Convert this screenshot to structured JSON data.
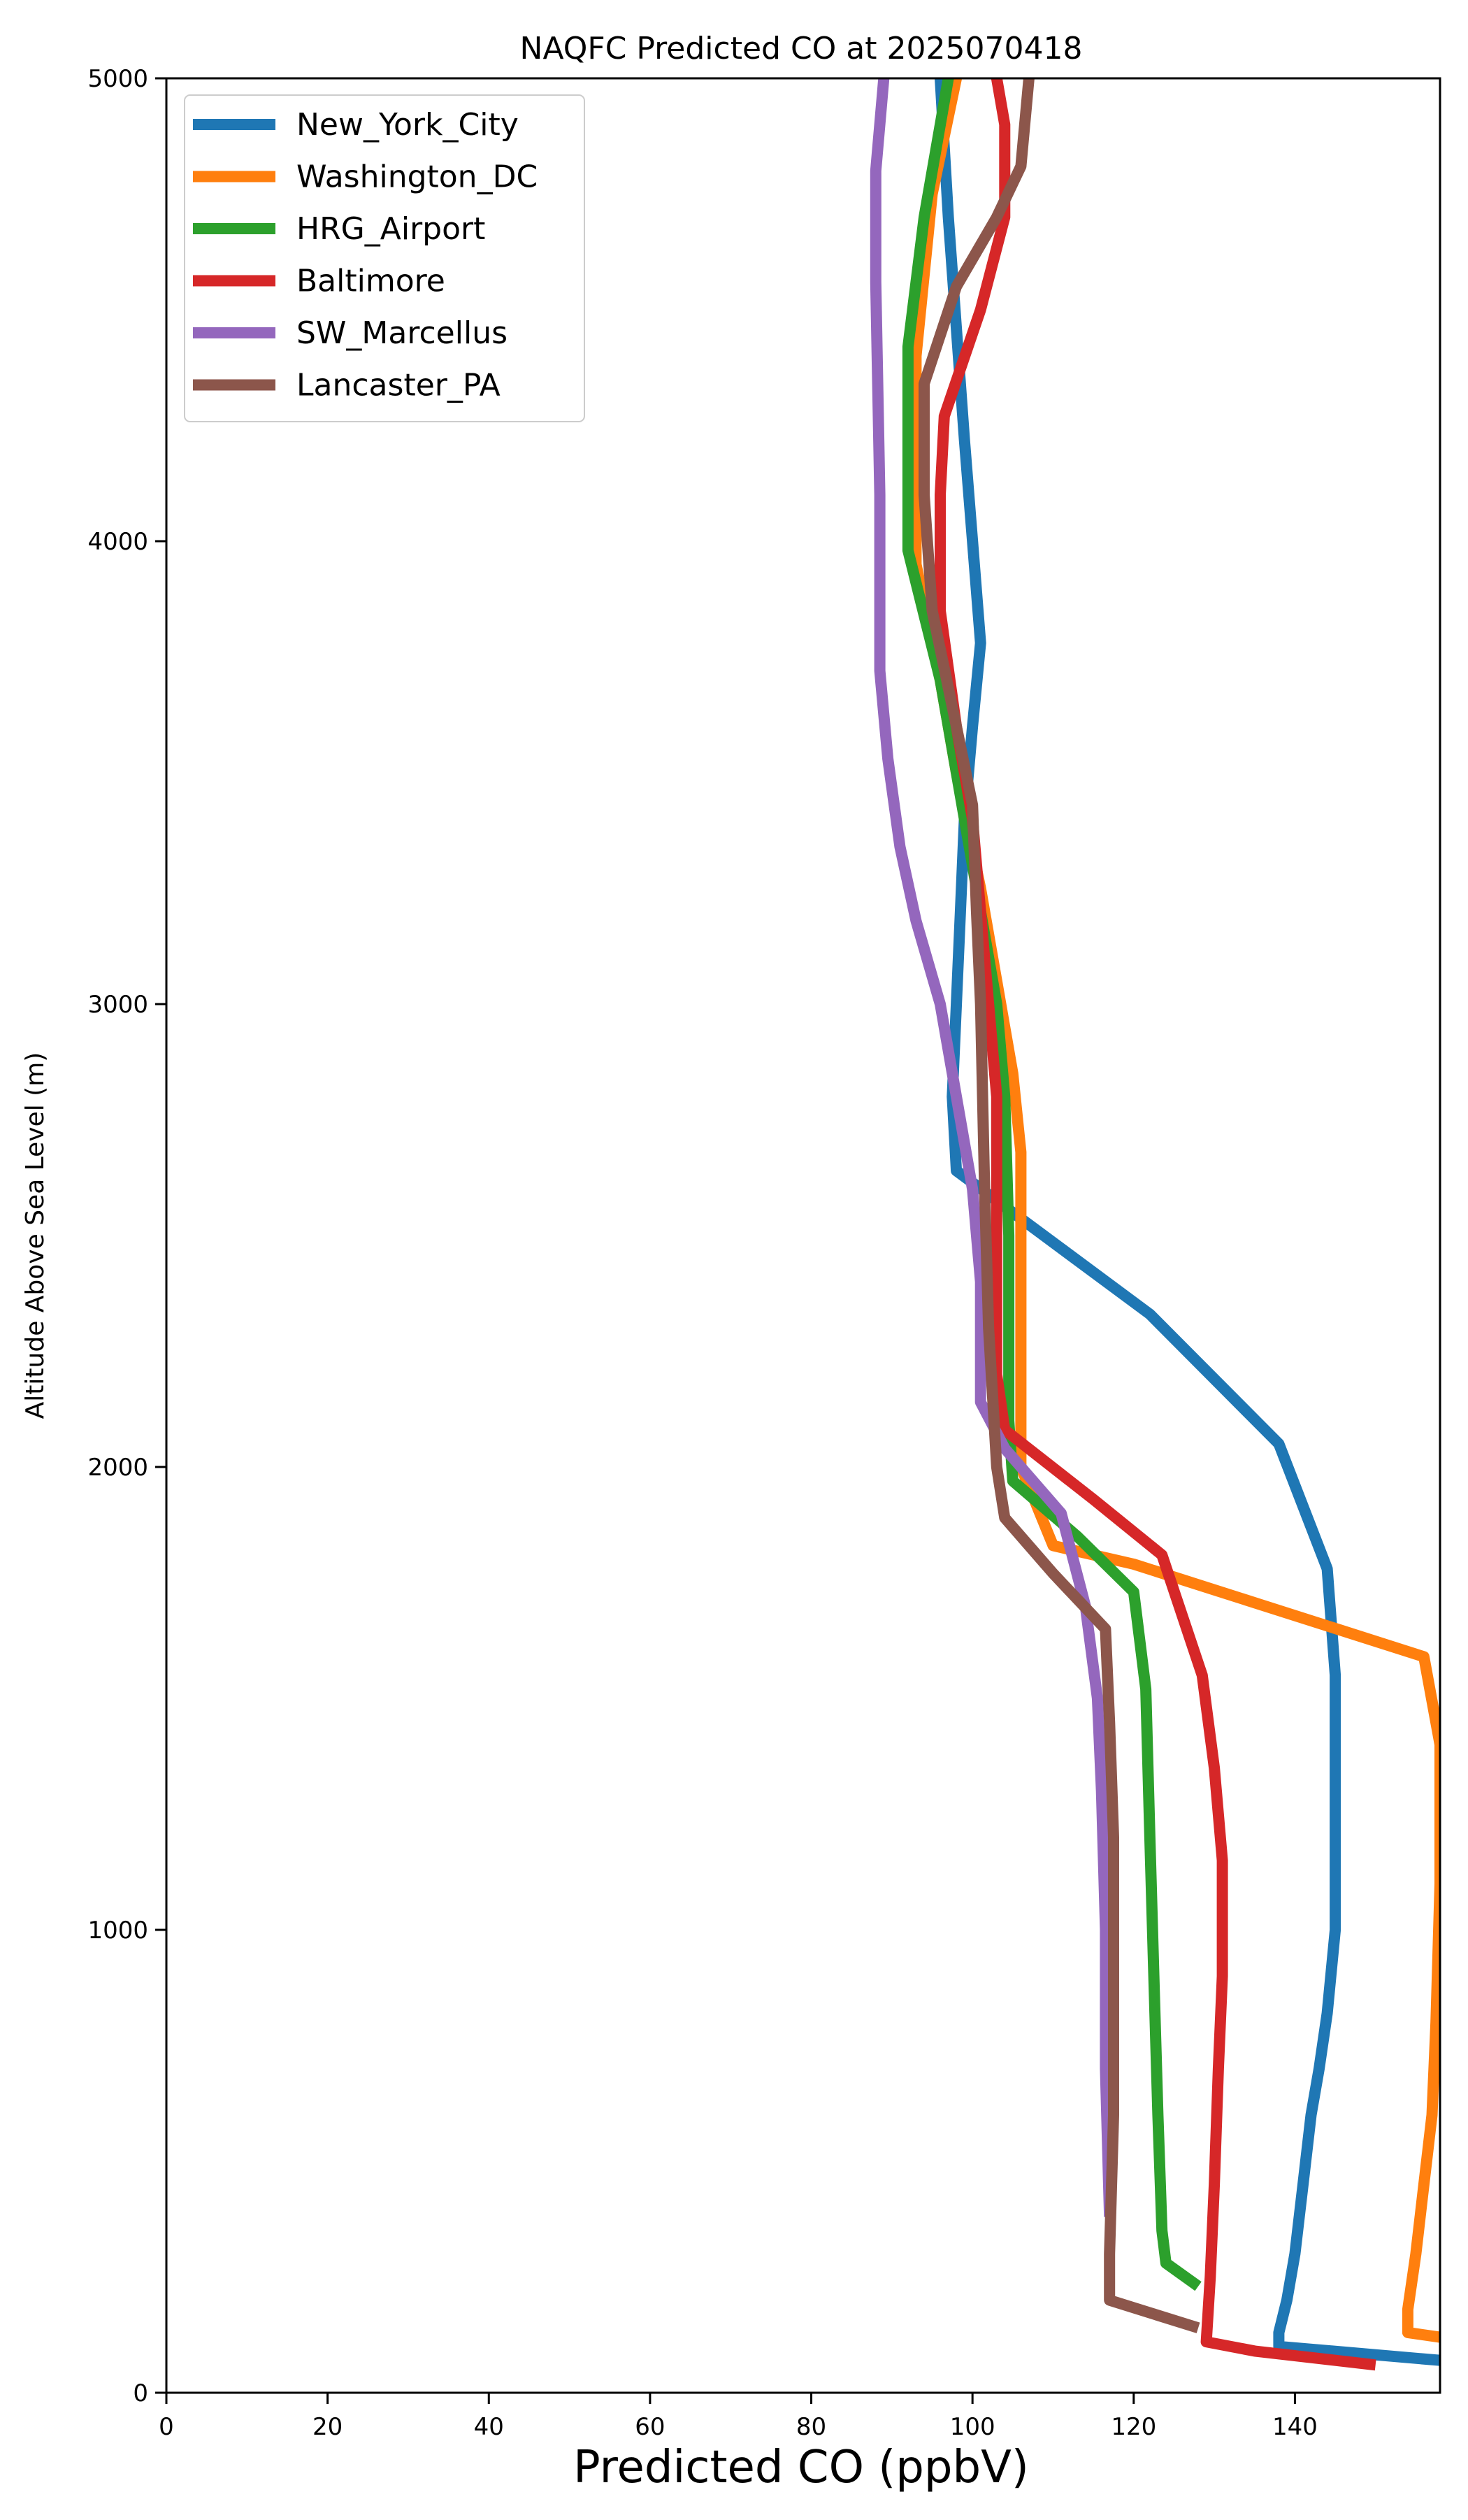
{
  "chart_data": {
    "type": "line",
    "title": "NAQFC Predicted CO at 2025070418",
    "xlabel": "Predicted CO (ppbV)",
    "ylabel": "Altitude Above Sea Level (m)",
    "xlim": [
      0,
      158
    ],
    "ylim": [
      0,
      5000
    ],
    "xticks": [
      0,
      20,
      40,
      60,
      80,
      100,
      120,
      140
    ],
    "yticks": [
      0,
      1000,
      2000,
      3000,
      4000,
      5000
    ],
    "grid": false,
    "legend_position": "top-left",
    "series": [
      {
        "name": "New_York_City",
        "color": "#1f77b4",
        "points": [
          [
            158,
            70
          ],
          [
            138,
            100
          ],
          [
            138,
            130
          ],
          [
            139,
            200
          ],
          [
            140,
            300
          ],
          [
            141,
            450
          ],
          [
            142,
            600
          ],
          [
            143,
            700
          ],
          [
            144,
            820
          ],
          [
            145,
            1000
          ],
          [
            145,
            1150
          ],
          [
            145,
            1350
          ],
          [
            145,
            1550
          ],
          [
            144,
            1780
          ],
          [
            138,
            2050
          ],
          [
            122,
            2330
          ],
          [
            98,
            2640
          ],
          [
            97.5,
            2800
          ],
          [
            98,
            3000
          ],
          [
            98.5,
            3200
          ],
          [
            99,
            3400
          ],
          [
            100,
            3600
          ],
          [
            101,
            3780
          ],
          [
            100,
            4000
          ],
          [
            99,
            4220
          ],
          [
            97,
            4700
          ],
          [
            96,
            5000
          ]
        ]
      },
      {
        "name": "Washington_DC",
        "color": "#ff7f0e",
        "points": [
          [
            158,
            120
          ],
          [
            154,
            130
          ],
          [
            154,
            180
          ],
          [
            155,
            300
          ],
          [
            156,
            450
          ],
          [
            157,
            600
          ],
          [
            157.5,
            800
          ],
          [
            158,
            1100
          ],
          [
            158,
            1400
          ],
          [
            156,
            1590
          ],
          [
            120,
            1790
          ],
          [
            110,
            1830
          ],
          [
            106,
            2000
          ],
          [
            106,
            2350
          ],
          [
            106,
            2680
          ],
          [
            105,
            2850
          ],
          [
            103,
            3050
          ],
          [
            101,
            3250
          ],
          [
            98,
            3500
          ],
          [
            96,
            3700
          ],
          [
            93,
            3950
          ],
          [
            93,
            4150
          ],
          [
            93,
            4400
          ],
          [
            95,
            4750
          ],
          [
            98,
            5000
          ]
        ]
      },
      {
        "name": "HRG_Airport",
        "color": "#2ca02c",
        "points": [
          [
            128,
            230
          ],
          [
            124,
            280
          ],
          [
            123.5,
            350
          ],
          [
            123,
            600
          ],
          [
            122.5,
            900
          ],
          [
            122,
            1200
          ],
          [
            121.5,
            1520
          ],
          [
            120,
            1730
          ],
          [
            113,
            1850
          ],
          [
            105,
            1970
          ],
          [
            104.5,
            2100
          ],
          [
            104.5,
            2500
          ],
          [
            104,
            2800
          ],
          [
            103,
            3000
          ],
          [
            101,
            3200
          ],
          [
            99,
            3400
          ],
          [
            96,
            3700
          ],
          [
            92,
            3980
          ],
          [
            92,
            4150
          ],
          [
            92,
            4420
          ],
          [
            94,
            4700
          ],
          [
            97,
            5000
          ]
        ]
      },
      {
        "name": "Baltimore",
        "color": "#d62728",
        "points": [
          [
            150,
            60
          ],
          [
            135,
            90
          ],
          [
            129,
            110
          ],
          [
            129.5,
            250
          ],
          [
            130,
            450
          ],
          [
            130.5,
            700
          ],
          [
            131,
            900
          ],
          [
            131,
            1150
          ],
          [
            130,
            1350
          ],
          [
            128.5,
            1550
          ],
          [
            123.5,
            1810
          ],
          [
            115,
            1930
          ],
          [
            104,
            2080
          ],
          [
            103,
            2200
          ],
          [
            103,
            2500
          ],
          [
            103,
            2800
          ],
          [
            102,
            3000
          ],
          [
            100,
            3400
          ],
          [
            98,
            3600
          ],
          [
            96,
            3850
          ],
          [
            96,
            4100
          ],
          [
            96.5,
            4270
          ],
          [
            101,
            4500
          ],
          [
            104,
            4700
          ],
          [
            104,
            4900
          ],
          [
            103,
            5000
          ]
        ]
      },
      {
        "name": "SW_Marcellus",
        "color": "#9467bd",
        "points": [
          [
            117,
            380
          ],
          [
            116.5,
            700
          ],
          [
            116.5,
            1000
          ],
          [
            116,
            1300
          ],
          [
            115.5,
            1500
          ],
          [
            114,
            1700
          ],
          [
            111,
            1900
          ],
          [
            104,
            2040
          ],
          [
            101,
            2140
          ],
          [
            101,
            2400
          ],
          [
            100,
            2600
          ],
          [
            98,
            2800
          ],
          [
            96,
            3000
          ],
          [
            93,
            3180
          ],
          [
            91,
            3340
          ],
          [
            89.5,
            3530
          ],
          [
            88.5,
            3720
          ],
          [
            88.5,
            4100
          ],
          [
            88,
            4560
          ],
          [
            88,
            4800
          ],
          [
            89,
            5000
          ]
        ]
      },
      {
        "name": "Lancaster_PA",
        "color": "#8c564b",
        "points": [
          [
            128,
            140
          ],
          [
            117,
            200
          ],
          [
            117,
            300
          ],
          [
            117.5,
            600
          ],
          [
            117.5,
            900
          ],
          [
            117.5,
            1200
          ],
          [
            117,
            1450
          ],
          [
            116.5,
            1650
          ],
          [
            110,
            1770
          ],
          [
            104,
            1890
          ],
          [
            103,
            2000
          ],
          [
            102,
            2300
          ],
          [
            101.5,
            2600
          ],
          [
            101,
            3000
          ],
          [
            100.5,
            3200
          ],
          [
            100,
            3430
          ],
          [
            98,
            3600
          ],
          [
            95,
            3850
          ],
          [
            94,
            4100
          ],
          [
            94,
            4340
          ],
          [
            98,
            4550
          ],
          [
            103,
            4700
          ],
          [
            106,
            4810
          ],
          [
            107,
            5000
          ]
        ]
      }
    ]
  }
}
